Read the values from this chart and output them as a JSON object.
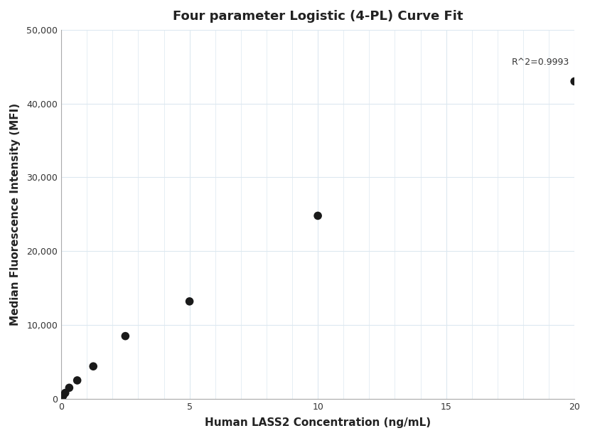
{
  "title": "Four parameter Logistic (4-PL) Curve Fit",
  "xlabel": "Human LASS2 Concentration (ng/mL)",
  "ylabel": "Median Fluorescence Intensity (MFI)",
  "r_squared": "R^2=0.9993",
  "x_data": [
    0.039,
    0.078,
    0.156,
    0.313,
    0.625,
    1.25,
    2.5,
    5.0,
    10.0,
    20.0
  ],
  "y_data": [
    200,
    450,
    800,
    1500,
    2500,
    4400,
    8500,
    13200,
    24800,
    43000
  ],
  "xlim": [
    0,
    20
  ],
  "ylim": [
    0,
    50000
  ],
  "yticks": [
    0,
    10000,
    20000,
    30000,
    40000,
    50000
  ],
  "xticks": [
    0,
    5,
    10,
    15,
    20
  ],
  "dot_color": "#1a1a1a",
  "dot_size": 70,
  "line_color": "#888888",
  "line_width": 1.0,
  "background_color": "#ffffff",
  "grid_color": "#dce8f0",
  "title_fontsize": 13,
  "label_fontsize": 11,
  "annotation_fontsize": 9,
  "r2_x": 19.8,
  "r2_y": 45000
}
